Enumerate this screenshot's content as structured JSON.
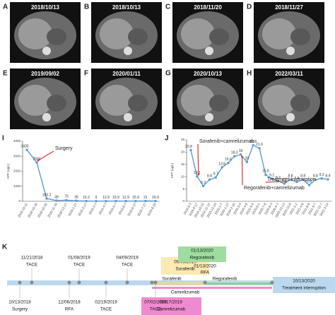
{
  "panels": [
    {
      "letter": "A",
      "date": "2018/10/13"
    },
    {
      "letter": "B",
      "date": "2018/10/13"
    },
    {
      "letter": "C",
      "date": "2018/11/20"
    },
    {
      "letter": "D",
      "date": "2018/11/27"
    },
    {
      "letter": "E",
      "date": "2019/09/02"
    },
    {
      "letter": "F",
      "date": "2020/01/11"
    },
    {
      "letter": "G",
      "date": "2020/10/13"
    },
    {
      "letter": "H",
      "date": "2022/03/11"
    }
  ],
  "chart_data": [
    {
      "type": "line",
      "letter": "I",
      "ylabel": "AFP (ug/L)",
      "color": "#5b9bd5",
      "categories": [
        "2018-10-11",
        "2018-10-16",
        "2018-10-30",
        "2018-11-18",
        "2018-12-17",
        "2019-1-27",
        "2019-2-17",
        "2019-3-7",
        "2019-4-7",
        "2019-5-7",
        "2019-6-7",
        "2019-6-27",
        "2019-7-27",
        "2019-8-28"
      ],
      "values": [
        3430,
        2584,
        183.3,
        49,
        75,
        36,
        15.2,
        9,
        12.9,
        15.9,
        12.9,
        15.9,
        21,
        20.9
      ],
      "ylim": [
        0,
        4000
      ],
      "yticks": [
        0,
        1000,
        2000,
        3000,
        4000
      ],
      "annotations": [
        "Surgery"
      ]
    },
    {
      "type": "line",
      "letter": "J",
      "ylabel": "AFP (ug/L)",
      "color": "#5b9bd5",
      "categories": [
        "2019-9-3",
        "2019-9-17",
        "2019-10-15",
        "2019-11-12",
        "2019-12-10",
        "2020-1-7",
        "2020-1-13",
        "2020-2-10",
        "2020-3-9",
        "2020-4-6",
        "2020-5-4",
        "2020-6-1",
        "2020-7-6",
        "2020-8-3",
        "2020-9-7",
        "2020-10-13",
        "2020-12-8",
        "2021-2-2",
        "2021-4-6",
        "2021-6-8",
        "2021-9-7",
        "2021-12-7",
        "2022-3-14"
      ],
      "values": [
        20.8,
        10.1,
        6.2,
        8.8,
        9.7,
        13.8,
        15.6,
        18.3,
        19.0,
        16.0,
        22.8,
        21.6,
        10.8,
        9.2,
        8.2,
        7.2,
        8.8,
        7.9,
        8.8,
        6.6,
        8.8,
        9.3,
        8.9
      ],
      "ylim": [
        0,
        25
      ],
      "yticks": [
        0,
        5,
        10,
        15,
        20,
        25
      ],
      "annotations": [
        "Sorafenib+camrelizumab",
        "Regorafenib+camrelizumab",
        "Treatment interruption"
      ]
    }
  ],
  "timeline": {
    "letter": "K",
    "top": [
      {
        "date": "11/21/2018",
        "event": "TACE"
      },
      {
        "date": "01/08/2019",
        "event": "TACE"
      },
      {
        "date": "04/09/2019",
        "event": "TACE"
      }
    ],
    "bottom": [
      {
        "date": "10/13/2018",
        "event": "Surgery"
      },
      {
        "date": "12/06/2018",
        "event": "RFA"
      },
      {
        "date": "02/19/2019",
        "event": "TACE"
      },
      {
        "date": "07/02/2019",
        "event": "TACE"
      }
    ],
    "sorafenib_box": {
      "date": "09/03/2019",
      "event": "Sorafenib"
    },
    "regorafenib_box": {
      "date": "01/13/2020",
      "event": "Regorafenib"
    },
    "rfa": {
      "date": "01/13/2020",
      "event": "RFA"
    },
    "camrelizumab_box": {
      "date": "09/17/2019",
      "event": "Camrelizumab"
    },
    "interruption_box": {
      "date": "10/13/2020",
      "event": "Treatment interruption"
    },
    "bars": {
      "sorafenib": "Sorafenib",
      "regorafenib": "Regorafenib",
      "camrelizumab": "Camrelizumab"
    }
  }
}
